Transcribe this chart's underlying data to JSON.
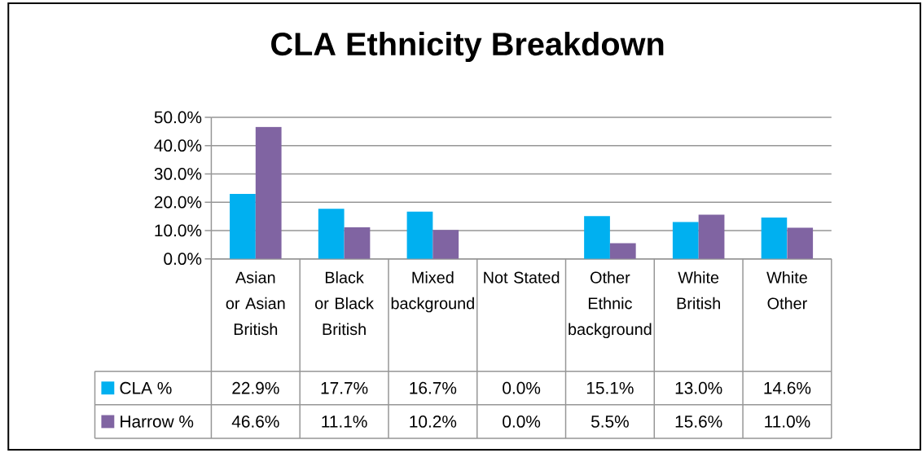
{
  "chart_data": {
    "type": "bar",
    "title": "CLA Ethnicity Breakdown",
    "categories": [
      "Asian or Asian British",
      "Black or Black British",
      "Mixed background",
      "Not Stated",
      "Other Ethnic background",
      "White British",
      "White Other"
    ],
    "series": [
      {
        "name": "CLA %",
        "color": "#00b0f0",
        "values": [
          22.9,
          17.7,
          16.7,
          0.0,
          15.1,
          13.0,
          14.6
        ],
        "value_labels": [
          "22.9%",
          "17.7%",
          "16.7%",
          "0.0%",
          "15.1%",
          "13.0%",
          "14.6%"
        ]
      },
      {
        "name": "Harrow %",
        "color": "#8064a2",
        "values": [
          46.6,
          11.1,
          10.2,
          0.0,
          5.5,
          15.6,
          11.0
        ],
        "value_labels": [
          "46.6%",
          "11.1%",
          "10.2%",
          "0.0%",
          "5.5%",
          "15.6%",
          "11.0%"
        ]
      }
    ],
    "ylim": [
      0,
      50
    ],
    "yticks": [
      {
        "value": 0,
        "label": "0.0%"
      },
      {
        "value": 10,
        "label": "10.0%"
      },
      {
        "value": 20,
        "label": "20.0%"
      },
      {
        "value": 30,
        "label": "30.0%"
      },
      {
        "value": 40,
        "label": "40.0%"
      },
      {
        "value": 50,
        "label": "50.0%"
      }
    ],
    "grid": "y",
    "legend": "bottom"
  }
}
